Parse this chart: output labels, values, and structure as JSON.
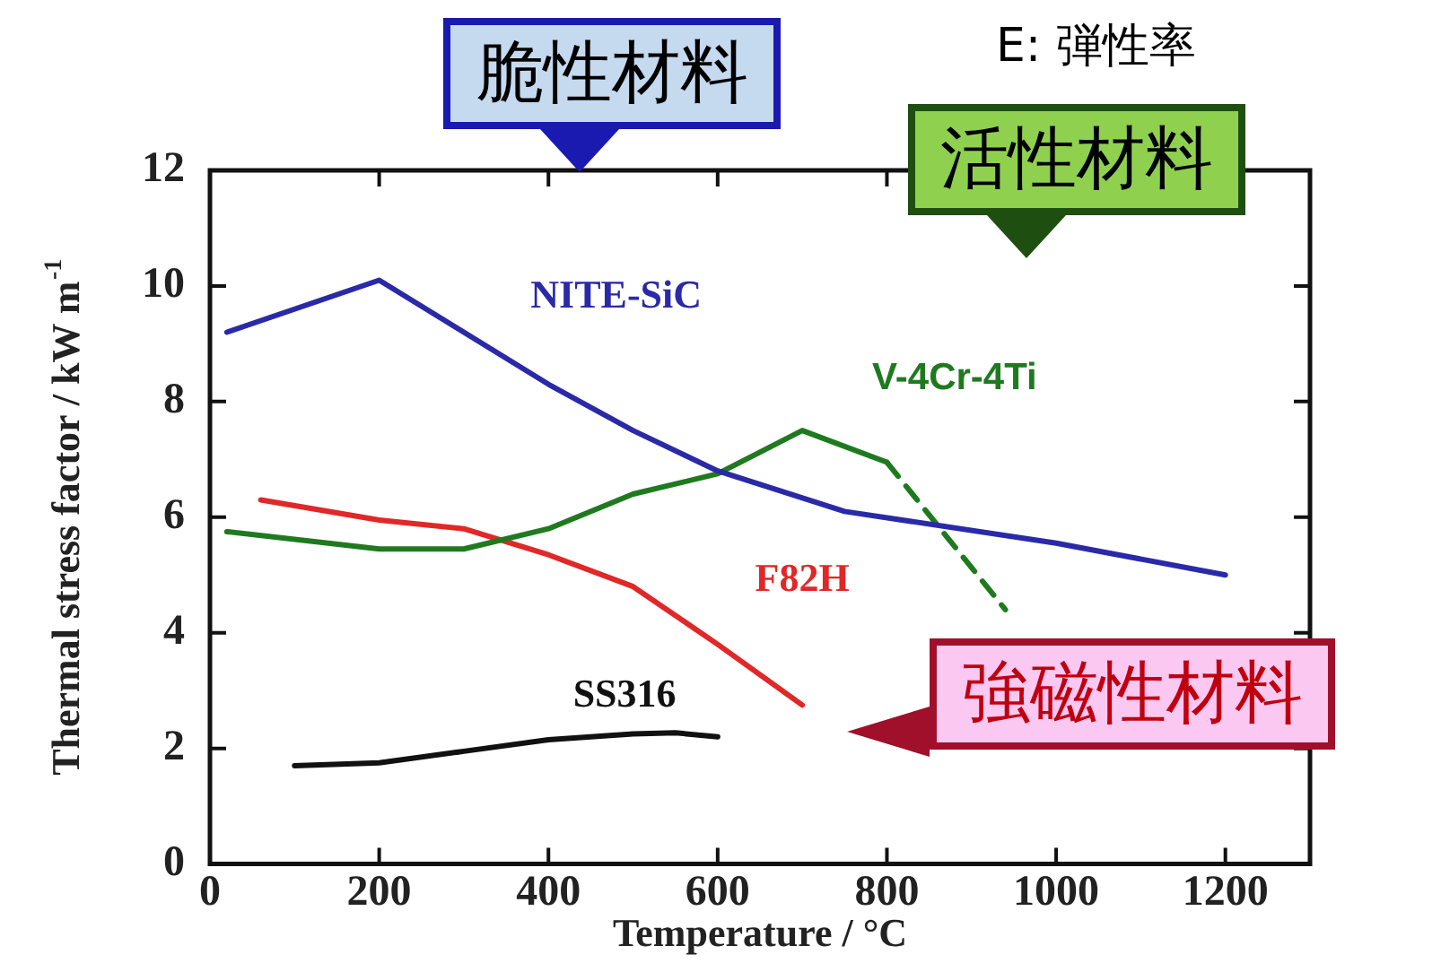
{
  "chart_data": {
    "type": "line",
    "xlabel": "Temperature / °C",
    "ylabel": "Thermal stress factor / kW m$^{-1}$",
    "xlim": [
      0,
      1300
    ],
    "xticks": [
      0,
      200,
      400,
      600,
      800,
      1000,
      1200
    ],
    "ylim": [
      0,
      12
    ],
    "yticks": [
      0,
      2,
      4,
      6,
      8,
      10,
      12
    ],
    "grid": false,
    "legend": false,
    "marker": "none",
    "series": [
      {
        "name": "NITE-SiC",
        "color": "#2a2aa8",
        "x": [
          20,
          200,
          400,
          500,
          600,
          750,
          1000,
          1200
        ],
        "values": [
          9.2,
          10.1,
          8.3,
          7.5,
          6.8,
          6.1,
          5.55,
          5.0
        ]
      },
      {
        "name": "V-4Cr-4Ti",
        "color": "#1f7a1f",
        "x": [
          20,
          200,
          300,
          400,
          500,
          600,
          700,
          800
        ],
        "values": [
          5.75,
          5.45,
          5.45,
          5.8,
          6.4,
          6.75,
          7.5,
          6.95
        ]
      },
      {
        "color": "#1f7a1f",
        "line_style": "dashed",
        "x": [
          800,
          940
        ],
        "values": [
          6.95,
          4.4
        ]
      },
      {
        "name": "F82H",
        "color": "#e02828",
        "x": [
          60,
          200,
          300,
          400,
          500,
          600,
          700
        ],
        "values": [
          6.3,
          5.95,
          5.8,
          5.35,
          4.8,
          3.8,
          2.75
        ]
      },
      {
        "name": "SS316",
        "color": "#111111",
        "x": [
          100,
          200,
          300,
          400,
          500,
          550,
          600
        ],
        "values": [
          1.7,
          1.75,
          1.95,
          2.15,
          2.25,
          2.27,
          2.2
        ]
      }
    ],
    "annotations": [
      "脆性材料",
      "活性材料",
      "強磁性材料",
      "E: 弾性率"
    ]
  }
}
